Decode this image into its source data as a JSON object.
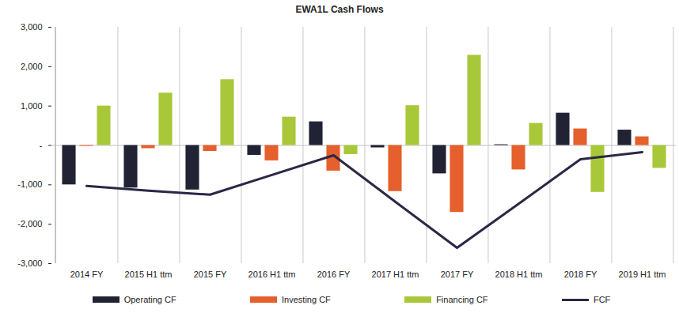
{
  "chart_data": {
    "type": "bar",
    "title": "EWA1L Cash Flows",
    "categories": [
      "2014 FY",
      "2015 H1 ttm",
      "2015 FY",
      "2016 H1 ttm",
      "2016 FY",
      "2017 H1 ttm",
      "2017 FY",
      "2018 H1 ttm",
      "2018 FY",
      "2019 H1 ttm"
    ],
    "series": [
      {
        "name": "Operating CF",
        "type": "bar",
        "color": "#222235",
        "values": [
          -1000,
          -1080,
          -1130,
          -250,
          600,
          -60,
          -720,
          20,
          820,
          390
        ]
      },
      {
        "name": "Investing CF",
        "type": "bar",
        "color": "#e5602c",
        "values": [
          -20,
          -80,
          -150,
          -390,
          -650,
          -1170,
          -1700,
          -620,
          420,
          220
        ]
      },
      {
        "name": "Financing CF",
        "type": "bar",
        "color": "#a8c83a",
        "values": [
          1000,
          1330,
          1670,
          720,
          -230,
          1010,
          2290,
          560,
          -1190,
          -580
        ]
      },
      {
        "name": "FCF",
        "type": "line",
        "color": "#2b2745",
        "values": [
          -1030,
          -1150,
          -1250,
          -750,
          -250,
          -1430,
          -2600,
          -1480,
          -350,
          -170
        ]
      }
    ],
    "ylim": [
      -3000,
      3000
    ],
    "yticks": [
      {
        "value": -3000,
        "label": "-3,000"
      },
      {
        "value": -2000,
        "label": "-2,000"
      },
      {
        "value": -1000,
        "label": "-1,000"
      },
      {
        "value": 0,
        "label": "-"
      },
      {
        "value": 1000,
        "label": "1,000"
      },
      {
        "value": 2000,
        "label": "2,000"
      },
      {
        "value": 3000,
        "label": "3,000"
      }
    ],
    "grid": true,
    "legend": "bottom"
  }
}
